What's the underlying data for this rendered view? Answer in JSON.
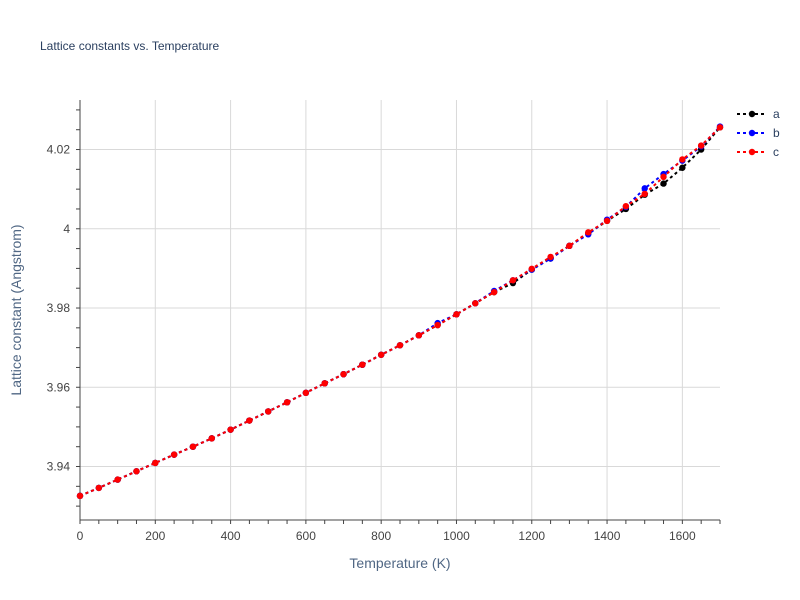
{
  "chart_data": {
    "type": "line",
    "title": "Lattice constants vs. Temperature",
    "xlabel": "Temperature (K)",
    "ylabel": "Lattice constant (Angstrom)",
    "xlim": [
      0,
      1700
    ],
    "ylim": [
      3.9265,
      4.0325
    ],
    "x_ticks": [
      0,
      200,
      400,
      600,
      800,
      1000,
      1200,
      1400,
      1600
    ],
    "y_ticks": [
      3.94,
      3.96,
      3.98,
      4.0,
      4.02
    ],
    "x_tick_labels": [
      "0",
      "200",
      "400",
      "600",
      "800",
      "1000",
      "1200",
      "1400",
      "1600"
    ],
    "y_tick_labels": [
      "3.94",
      "3.96",
      "3.98",
      "4",
      "4.02"
    ],
    "grid": true,
    "legend_position": "top-right",
    "x": [
      0,
      50,
      100,
      150,
      200,
      250,
      300,
      350,
      400,
      450,
      500,
      550,
      600,
      650,
      700,
      750,
      800,
      850,
      900,
      950,
      1000,
      1050,
      1100,
      1150,
      1200,
      1250,
      1300,
      1350,
      1400,
      1450,
      1500,
      1550,
      1600,
      1650,
      1700
    ],
    "series": [
      {
        "name": "a",
        "color": "#000000",
        "values": [
          3.9326,
          3.9346,
          3.9367,
          3.9388,
          3.9409,
          3.943,
          3.945,
          3.9471,
          3.9493,
          3.9516,
          3.9539,
          3.9562,
          3.9586,
          3.961,
          3.9633,
          3.9657,
          3.9682,
          3.9706,
          3.9731,
          3.9757,
          3.9784,
          3.9812,
          3.984,
          3.9863,
          3.9897,
          3.9925,
          3.9957,
          3.9988,
          4.002,
          4.005,
          4.0086,
          4.0114,
          4.0154,
          4.02,
          4.0256
        ]
      },
      {
        "name": "b",
        "color": "#0000ff",
        "values": [
          3.9326,
          3.9346,
          3.9367,
          3.9388,
          3.9409,
          3.943,
          3.945,
          3.9471,
          3.9493,
          3.9516,
          3.9539,
          3.9562,
          3.9586,
          3.961,
          3.9633,
          3.9657,
          3.9682,
          3.9706,
          3.9731,
          3.9762,
          3.9784,
          3.9812,
          3.9843,
          3.987,
          3.9897,
          3.9925,
          3.9957,
          3.9986,
          4.0023,
          4.0055,
          4.0102,
          4.0138,
          4.0172,
          4.0208,
          4.0258
        ]
      },
      {
        "name": "c",
        "color": "#ff0000",
        "values": [
          3.9326,
          3.9346,
          3.9367,
          3.9388,
          3.9409,
          3.943,
          3.945,
          3.9471,
          3.9493,
          3.9516,
          3.9539,
          3.9562,
          3.9586,
          3.961,
          3.9633,
          3.9657,
          3.9682,
          3.9706,
          3.9731,
          3.9757,
          3.9784,
          3.9812,
          3.984,
          3.987,
          3.9899,
          3.9929,
          3.9957,
          3.9991,
          4.002,
          4.0057,
          4.0088,
          4.0131,
          4.0175,
          4.021,
          4.0256
        ]
      }
    ]
  }
}
